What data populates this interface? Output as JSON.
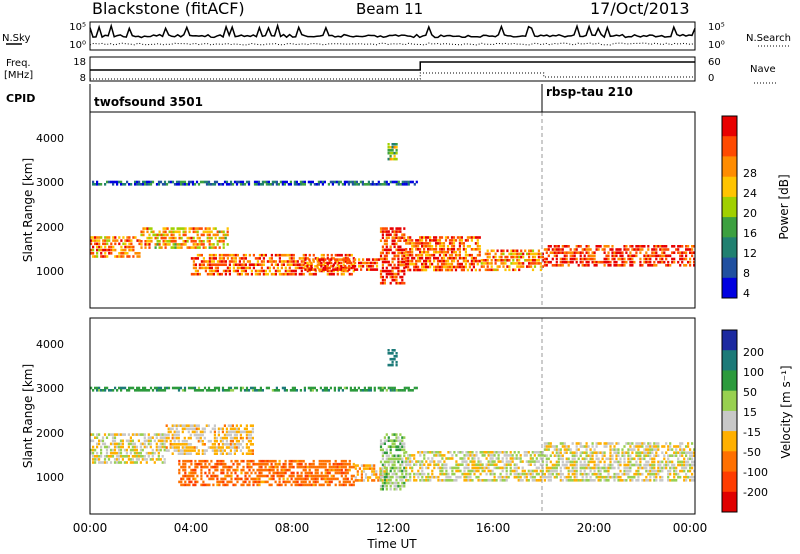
{
  "header": {
    "site": "Blackstone (fitACF)",
    "beam": "Beam 11",
    "date": "17/Oct/2013"
  },
  "labels": {
    "nsky": "N.Sky",
    "nsearch": "N.Search",
    "freq": "Freq.",
    "freq_unit": "[MHz]",
    "nave": "Nave",
    "cpid": "CPID",
    "time_axis": "Time UT",
    "slant_range": "Slant Range [km]",
    "power_cb": "Power [dB]",
    "velocity_cb": "Velocity [m s⁻¹]"
  },
  "noise_panel": {
    "left_ticks": [
      "10^5",
      "10^0"
    ],
    "right_ticks": [
      "10^5",
      "10^0"
    ]
  },
  "freq_panel": {
    "left_ticks": [
      "18",
      "8"
    ],
    "right_ticks": [
      "60",
      "0"
    ]
  },
  "cpid": [
    {
      "name": "twofsound 3501",
      "start_hour": 0
    },
    {
      "name": "rbsp-tau 210",
      "start_hour": 18
    }
  ],
  "colorbars": {
    "power": {
      "labels": [
        "28",
        "24",
        "20",
        "16",
        "12",
        "8",
        "4"
      ],
      "colors": [
        "#e80000",
        "#ff4a00",
        "#ff8c00",
        "#ffc400",
        "#a0d000",
        "#3ca040",
        "#208070",
        "#2050a0",
        "#0000e0"
      ]
    },
    "velocity": {
      "labels": [
        "200",
        "100",
        "50",
        "15",
        "-15",
        "-50",
        "-100",
        "-200"
      ],
      "colors": [
        "#1c2aa0",
        "#1c7a78",
        "#2c9a3c",
        "#98d050",
        "#c8c8c8",
        "#ffb000",
        "#ff7000",
        "#ff3c00",
        "#e00000"
      ]
    }
  },
  "chart_data": [
    {
      "type": "heatmap",
      "title": "Power",
      "xlabel": "Time UT",
      "ylabel": "Slant Range [km]",
      "x_range_hours": [
        0,
        24
      ],
      "y_range_km": [
        180,
        4600
      ],
      "x_tick_labels": [
        "00:00",
        "04:00",
        "08:00",
        "12:00",
        "16:00",
        "20:00",
        "00:00"
      ],
      "y_tick_labels": [
        "1000",
        "2000",
        "3000",
        "4000"
      ],
      "colorbar_label": "Power [dB]",
      "colorbar_ticks": [
        4,
        8,
        12,
        16,
        20,
        24,
        28
      ],
      "colorbar_range": [
        0,
        30
      ],
      "echo_bands": [
        {
          "start_hour": 0.0,
          "end_hour": 2.0,
          "range_km": [
            1300,
            1800
          ],
          "value": 22
        },
        {
          "start_hour": 2.0,
          "end_hour": 5.5,
          "range_km": [
            1500,
            2000
          ],
          "value": 20
        },
        {
          "start_hour": 4.0,
          "end_hour": 10.5,
          "range_km": [
            900,
            1400
          ],
          "value": 24
        },
        {
          "start_hour": 8.5,
          "end_hour": 11.5,
          "range_km": [
            1000,
            1300
          ],
          "value": 26
        },
        {
          "start_hour": 11.5,
          "end_hour": 12.5,
          "range_km": [
            700,
            2000
          ],
          "value": 27
        },
        {
          "start_hour": 12.5,
          "end_hour": 15.5,
          "range_km": [
            1000,
            1800
          ],
          "value": 24
        },
        {
          "start_hour": 15.5,
          "end_hour": 18.0,
          "range_km": [
            1000,
            1500
          ],
          "value": 22
        },
        {
          "start_hour": 18.0,
          "end_hour": 24.0,
          "range_km": [
            1100,
            1600
          ],
          "value": 27
        },
        {
          "start_hour": 0.0,
          "end_hour": 13.0,
          "range_km": [
            2950,
            3050
          ],
          "value": 6
        },
        {
          "start_hour": 11.8,
          "end_hour": 12.2,
          "range_km": [
            3500,
            3900
          ],
          "value": 14
        }
      ]
    },
    {
      "type": "heatmap",
      "title": "Velocity",
      "xlabel": "Time UT",
      "ylabel": "Slant Range [km]",
      "x_range_hours": [
        0,
        24
      ],
      "y_range_km": [
        180,
        4600
      ],
      "x_tick_labels": [
        "00:00",
        "04:00",
        "08:00",
        "12:00",
        "16:00",
        "20:00",
        "00:00"
      ],
      "y_tick_labels": [
        "1000",
        "2000",
        "3000",
        "4000"
      ],
      "colorbar_label": "Velocity [m s⁻¹]",
      "colorbar_ticks": [
        -200,
        -100,
        -50,
        -15,
        15,
        50,
        100,
        200
      ],
      "colorbar_range": [
        -250,
        250
      ],
      "echo_bands": [
        {
          "start_hour": 0.0,
          "end_hour": 3.0,
          "range_km": [
            1300,
            2000
          ],
          "value": 0
        },
        {
          "start_hour": 3.0,
          "end_hour": 6.5,
          "range_km": [
            1500,
            2200
          ],
          "value": -20
        },
        {
          "start_hour": 3.5,
          "end_hour": 10.5,
          "range_km": [
            800,
            1400
          ],
          "value": -80
        },
        {
          "start_hour": 10.5,
          "end_hour": 11.8,
          "range_km": [
            900,
            1300
          ],
          "value": -40
        },
        {
          "start_hour": 11.5,
          "end_hour": 12.5,
          "range_km": [
            700,
            2000
          ],
          "value": 30
        },
        {
          "start_hour": 12.5,
          "end_hour": 18.0,
          "range_km": [
            900,
            1600
          ],
          "value": 0
        },
        {
          "start_hour": 18.0,
          "end_hour": 24.0,
          "range_km": [
            900,
            1800
          ],
          "value": 0
        },
        {
          "start_hour": 0.0,
          "end_hour": 13.0,
          "range_km": [
            2950,
            3050
          ],
          "value": 80
        },
        {
          "start_hour": 11.8,
          "end_hour": 12.2,
          "range_km": [
            3500,
            3900
          ],
          "value": 150
        }
      ]
    }
  ]
}
